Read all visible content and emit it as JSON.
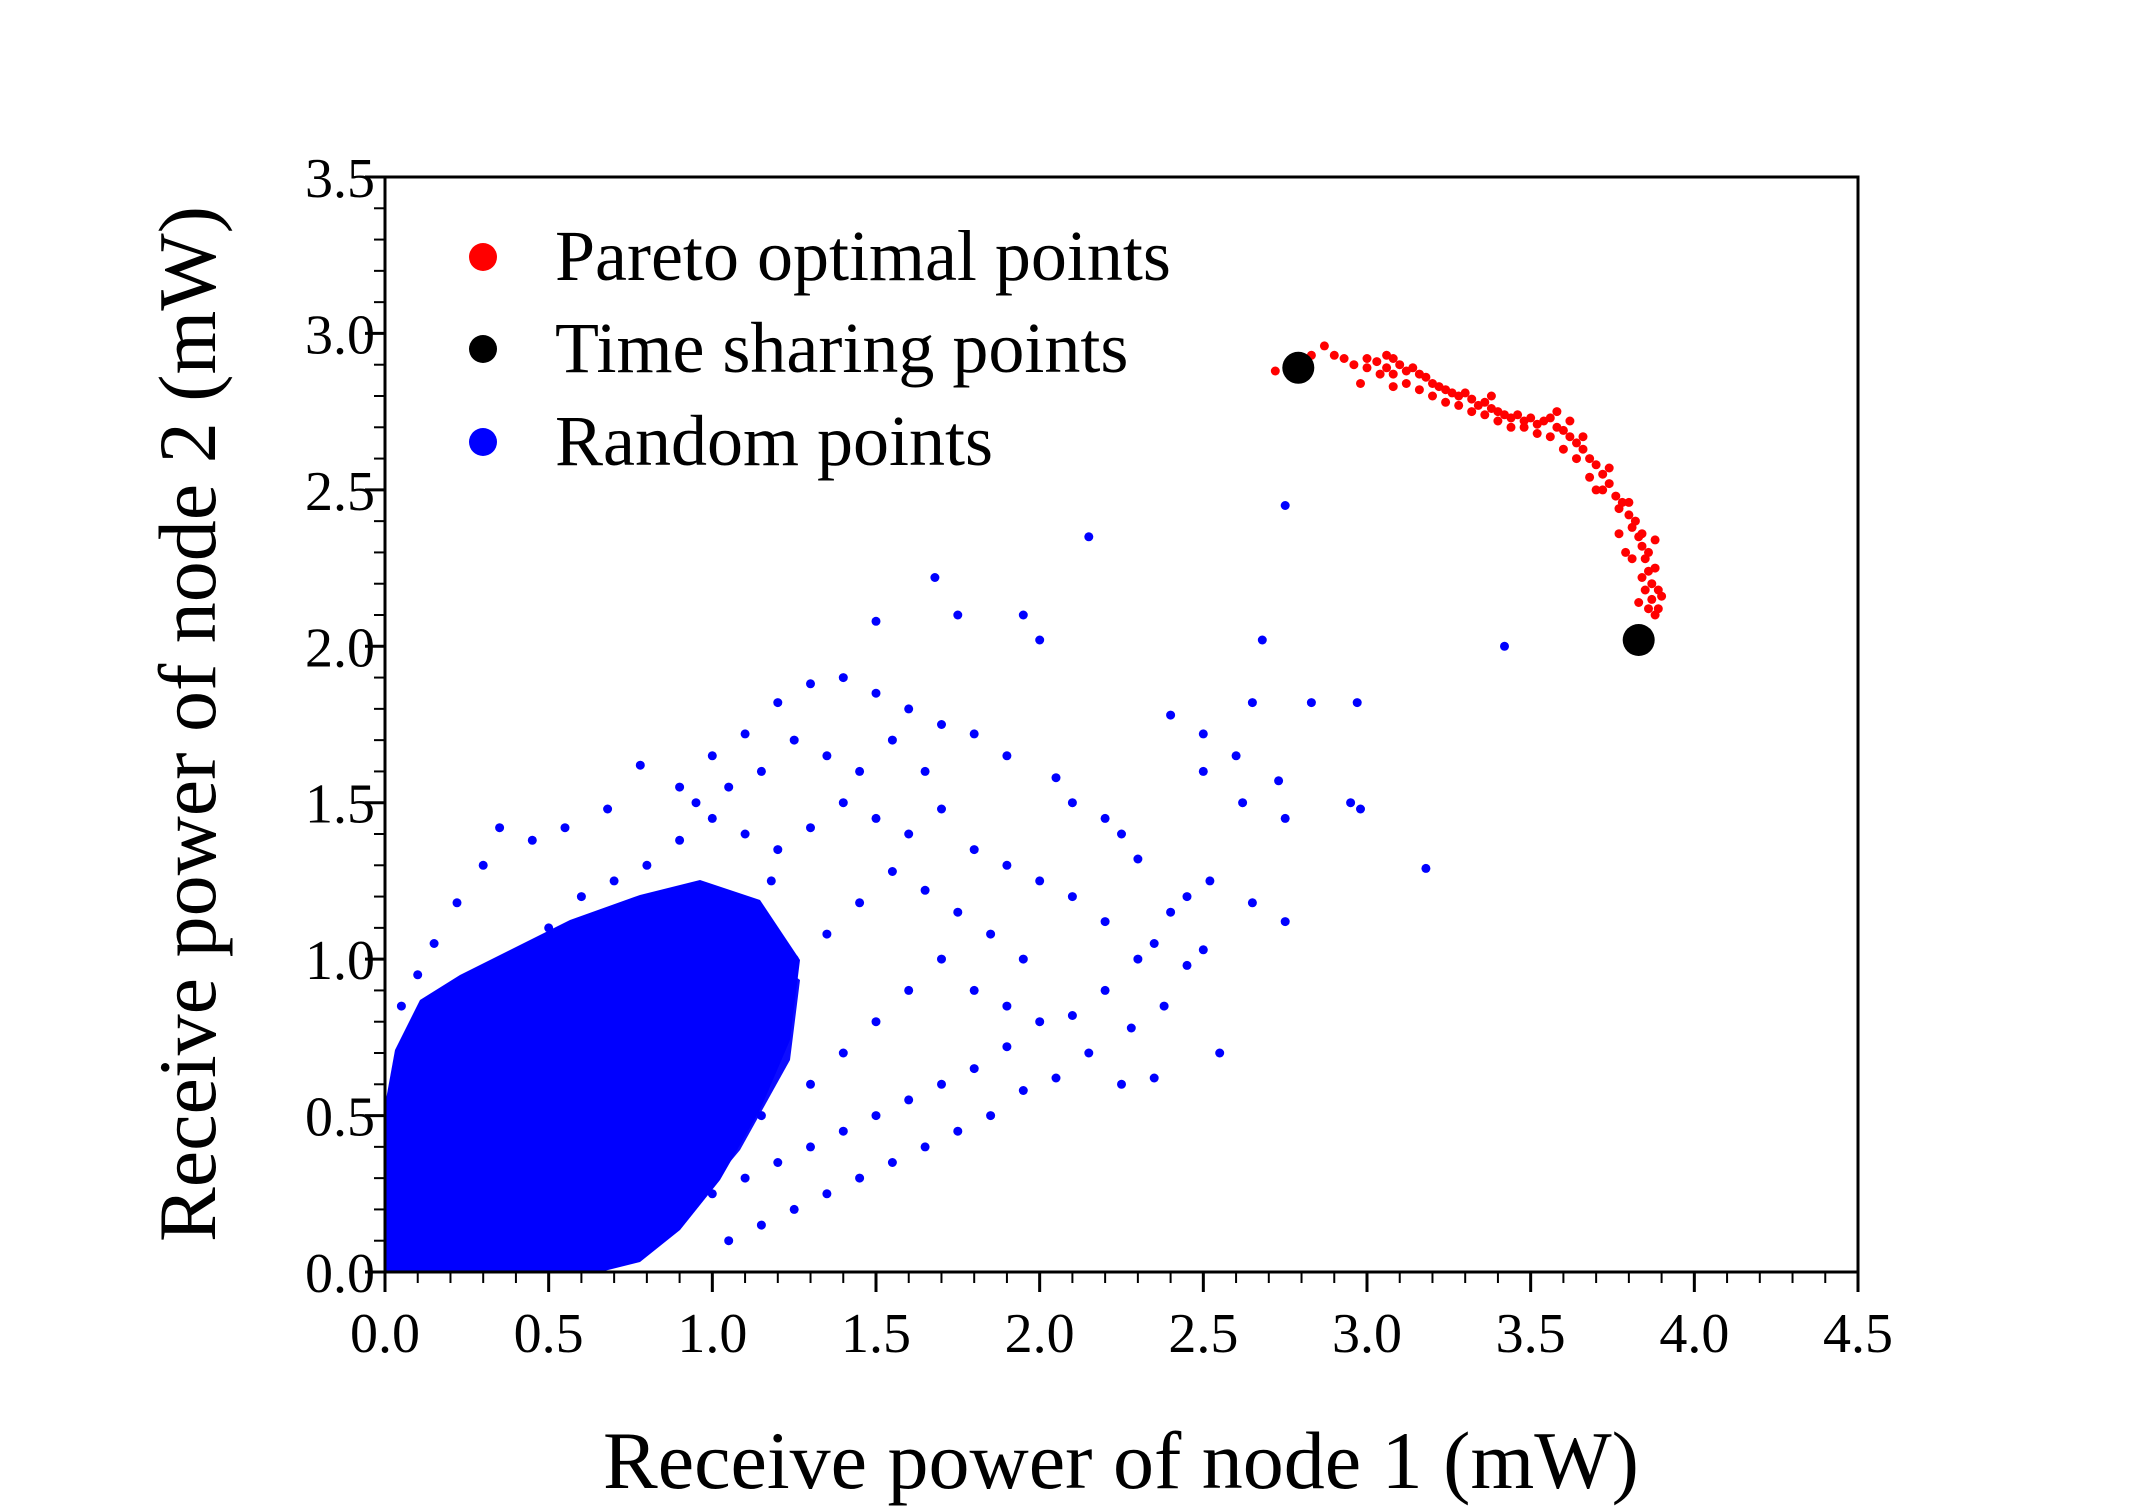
{
  "chart_data": {
    "type": "scatter",
    "title": "",
    "xlabel": "Receive power of node 1 (mW)",
    "ylabel": "Receive power of node 2 (mW)",
    "xlim": [
      0,
      4.5
    ],
    "ylim": [
      0,
      3.5
    ],
    "grid": false,
    "legend_position": "top-left",
    "x_ticks": [
      "0.0",
      "0.5",
      "1.0",
      "1.5",
      "2.0",
      "2.5",
      "3.0",
      "3.5",
      "4.0",
      "4.5"
    ],
    "y_ticks": [
      "0.0",
      "0.5",
      "1.0",
      "1.5",
      "2.0",
      "2.5",
      "3.0",
      "3.5"
    ],
    "series": [
      {
        "name": "Pareto optimal points",
        "color": "#ff0000",
        "marker": "dot",
        "points": [
          [
            2.72,
            2.88
          ],
          [
            2.76,
            2.88
          ],
          [
            2.83,
            2.93
          ],
          [
            2.87,
            2.96
          ],
          [
            2.9,
            2.93
          ],
          [
            2.93,
            2.92
          ],
          [
            2.96,
            2.9
          ],
          [
            3.0,
            2.89
          ],
          [
            3.03,
            2.91
          ],
          [
            3.06,
            2.93
          ],
          [
            3.06,
            2.89
          ],
          [
            3.08,
            2.92
          ],
          [
            3.08,
            2.87
          ],
          [
            3.1,
            2.9
          ],
          [
            3.12,
            2.88
          ],
          [
            3.14,
            2.89
          ],
          [
            3.16,
            2.87
          ],
          [
            3.18,
            2.86
          ],
          [
            3.2,
            2.84
          ],
          [
            3.22,
            2.83
          ],
          [
            3.24,
            2.82
          ],
          [
            3.26,
            2.81
          ],
          [
            3.28,
            2.8
          ],
          [
            3.3,
            2.81
          ],
          [
            3.32,
            2.79
          ],
          [
            3.34,
            2.77
          ],
          [
            3.36,
            2.78
          ],
          [
            3.38,
            2.76
          ],
          [
            3.4,
            2.75
          ],
          [
            3.42,
            2.74
          ],
          [
            3.44,
            2.73
          ],
          [
            3.46,
            2.74
          ],
          [
            3.48,
            2.72
          ],
          [
            3.5,
            2.73
          ],
          [
            3.52,
            2.71
          ],
          [
            3.54,
            2.72
          ],
          [
            3.56,
            2.73
          ],
          [
            3.58,
            2.7
          ],
          [
            3.6,
            2.69
          ],
          [
            3.62,
            2.67
          ],
          [
            3.62,
            2.72
          ],
          [
            3.64,
            2.65
          ],
          [
            3.66,
            2.63
          ],
          [
            3.68,
            2.6
          ],
          [
            3.7,
            2.58
          ],
          [
            3.72,
            2.55
          ],
          [
            3.72,
            2.5
          ],
          [
            3.74,
            2.52
          ],
          [
            3.76,
            2.48
          ],
          [
            3.77,
            2.44
          ],
          [
            3.78,
            2.46
          ],
          [
            3.8,
            2.42
          ],
          [
            3.81,
            2.38
          ],
          [
            3.82,
            2.4
          ],
          [
            3.83,
            2.35
          ],
          [
            3.84,
            2.32
          ],
          [
            3.85,
            2.28
          ],
          [
            3.86,
            2.3
          ],
          [
            3.86,
            2.24
          ],
          [
            3.87,
            2.2
          ],
          [
            3.87,
            2.15
          ],
          [
            3.88,
            2.25
          ],
          [
            3.88,
            2.1
          ],
          [
            3.89,
            2.18
          ],
          [
            3.9,
            2.16
          ],
          [
            3.84,
            2.36
          ],
          [
            3.8,
            2.46
          ],
          [
            3.74,
            2.57
          ],
          [
            3.66,
            2.67
          ],
          [
            3.58,
            2.75
          ],
          [
            2.98,
            2.84
          ],
          [
            3.38,
            2.8
          ],
          [
            3.08,
            2.83
          ],
          [
            3.88,
            2.34
          ],
          [
            3.84,
            2.22
          ],
          [
            3.83,
            2.14
          ],
          [
            3.86,
            2.12
          ],
          [
            3.89,
            2.12
          ],
          [
            3.85,
            2.18
          ],
          [
            3.81,
            2.28
          ],
          [
            3.77,
            2.36
          ],
          [
            3.79,
            2.3
          ],
          [
            3.7,
            2.5
          ],
          [
            3.68,
            2.54
          ],
          [
            3.64,
            2.6
          ],
          [
            3.6,
            2.63
          ],
          [
            3.56,
            2.67
          ],
          [
            3.52,
            2.68
          ],
          [
            3.48,
            2.7
          ],
          [
            3.44,
            2.7
          ],
          [
            3.4,
            2.72
          ],
          [
            3.36,
            2.74
          ],
          [
            3.32,
            2.75
          ],
          [
            3.28,
            2.77
          ],
          [
            3.24,
            2.78
          ],
          [
            3.2,
            2.8
          ],
          [
            3.16,
            2.82
          ],
          [
            3.12,
            2.84
          ],
          [
            3.04,
            2.87
          ],
          [
            3.0,
            2.92
          ]
        ]
      },
      {
        "name": "Time sharing points",
        "color": "#000000",
        "marker": "large-dot",
        "points": [
          [
            2.79,
            2.89
          ],
          [
            3.83,
            2.02
          ]
        ]
      },
      {
        "name": "Random points",
        "color": "#0000ff",
        "marker": "dot",
        "sample_note": "",
        "points": [
          [
            2.15,
            2.35
          ],
          [
            2.75,
            2.45
          ],
          [
            2.68,
            2.02
          ],
          [
            3.42,
            2.0
          ],
          [
            1.68,
            2.22
          ],
          [
            1.75,
            2.1
          ],
          [
            1.95,
            2.1
          ],
          [
            2.0,
            2.02
          ],
          [
            1.5,
            2.08
          ],
          [
            2.83,
            1.82
          ],
          [
            2.97,
            1.82
          ],
          [
            2.65,
            1.82
          ],
          [
            2.4,
            1.78
          ],
          [
            2.5,
            1.72
          ],
          [
            2.6,
            1.65
          ],
          [
            2.73,
            1.57
          ],
          [
            2.75,
            1.45
          ],
          [
            2.62,
            1.5
          ],
          [
            2.5,
            1.6
          ],
          [
            2.95,
            1.5
          ],
          [
            2.98,
            1.48
          ],
          [
            3.18,
            1.29
          ],
          [
            2.75,
            1.12
          ],
          [
            2.65,
            1.18
          ],
          [
            2.52,
            1.25
          ],
          [
            2.5,
            1.03
          ],
          [
            2.55,
            0.7
          ],
          [
            2.45,
            0.98
          ],
          [
            2.35,
            1.05
          ],
          [
            2.3,
            1.32
          ],
          [
            2.25,
            1.4
          ],
          [
            2.2,
            1.45
          ],
          [
            2.1,
            1.5
          ],
          [
            2.05,
            1.58
          ],
          [
            1.9,
            1.65
          ],
          [
            1.8,
            1.72
          ],
          [
            1.7,
            1.75
          ],
          [
            1.6,
            1.8
          ],
          [
            1.5,
            1.85
          ],
          [
            1.4,
            1.9
          ],
          [
            1.3,
            1.88
          ],
          [
            1.2,
            1.82
          ],
          [
            1.1,
            1.72
          ],
          [
            1.0,
            1.65
          ],
          [
            0.9,
            1.55
          ],
          [
            0.78,
            1.62
          ],
          [
            0.68,
            1.48
          ],
          [
            0.55,
            1.42
          ],
          [
            0.45,
            1.38
          ],
          [
            0.35,
            1.42
          ],
          [
            0.3,
            1.3
          ],
          [
            0.22,
            1.18
          ],
          [
            0.15,
            1.05
          ],
          [
            0.1,
            0.95
          ],
          [
            0.05,
            0.85
          ],
          [
            0.1,
            0.72
          ],
          [
            0.2,
            0.78
          ],
          [
            0.3,
            0.9
          ],
          [
            0.4,
            1.0
          ],
          [
            0.5,
            1.1
          ],
          [
            0.6,
            1.2
          ],
          [
            0.7,
            1.25
          ],
          [
            0.8,
            1.3
          ],
          [
            0.9,
            1.38
          ],
          [
            1.0,
            1.45
          ],
          [
            1.1,
            1.4
          ],
          [
            1.2,
            1.35
          ],
          [
            1.3,
            1.42
          ],
          [
            1.4,
            1.5
          ],
          [
            1.5,
            1.45
          ],
          [
            1.6,
            1.4
          ],
          [
            1.7,
            1.48
          ],
          [
            1.8,
            1.35
          ],
          [
            1.9,
            1.3
          ],
          [
            2.0,
            1.25
          ],
          [
            2.1,
            1.2
          ],
          [
            2.2,
            1.12
          ],
          [
            2.3,
            1.0
          ],
          [
            2.2,
            0.9
          ],
          [
            2.1,
            0.82
          ],
          [
            2.0,
            0.8
          ],
          [
            1.9,
            0.72
          ],
          [
            1.8,
            0.65
          ],
          [
            1.7,
            0.6
          ],
          [
            1.6,
            0.55
          ],
          [
            1.5,
            0.5
          ],
          [
            1.4,
            0.45
          ],
          [
            1.3,
            0.4
          ],
          [
            1.2,
            0.35
          ],
          [
            1.1,
            0.3
          ],
          [
            1.0,
            0.25
          ],
          [
            0.9,
            0.2
          ],
          [
            0.8,
            0.12
          ],
          [
            0.7,
            0.08
          ],
          [
            0.6,
            0.04
          ],
          [
            0.5,
            0.02
          ],
          [
            2.35,
            0.62
          ],
          [
            2.25,
            0.6
          ],
          [
            2.15,
            0.7
          ],
          [
            2.05,
            0.62
          ],
          [
            1.95,
            0.58
          ],
          [
            1.85,
            0.5
          ],
          [
            1.75,
            0.45
          ],
          [
            1.65,
            0.4
          ],
          [
            1.55,
            0.35
          ],
          [
            1.45,
            0.3
          ],
          [
            1.35,
            0.25
          ],
          [
            1.25,
            0.2
          ],
          [
            1.15,
            0.15
          ],
          [
            1.05,
            0.1
          ],
          [
            2.4,
            1.15
          ],
          [
            2.45,
            1.2
          ],
          [
            2.38,
            0.85
          ],
          [
            2.28,
            0.78
          ],
          [
            1.95,
            1.0
          ],
          [
            1.85,
            1.08
          ],
          [
            1.75,
            1.15
          ],
          [
            1.65,
            1.22
          ],
          [
            1.55,
            1.28
          ],
          [
            1.45,
            1.18
          ],
          [
            1.35,
            1.08
          ],
          [
            1.25,
            1.0
          ],
          [
            1.15,
            0.95
          ],
          [
            1.05,
            1.05
          ],
          [
            0.95,
            1.12
          ],
          [
            0.85,
            1.18
          ],
          [
            0.75,
            1.08
          ],
          [
            0.65,
            1.0
          ],
          [
            0.55,
            0.92
          ],
          [
            0.45,
            0.85
          ],
          [
            0.35,
            0.78
          ],
          [
            0.25,
            0.7
          ],
          [
            0.15,
            0.6
          ],
          [
            0.05,
            0.5
          ],
          [
            0.02,
            0.3
          ],
          [
            0.05,
            0.15
          ],
          [
            0.1,
            0.05
          ],
          [
            0.2,
            0.1
          ],
          [
            0.3,
            0.2
          ],
          [
            0.4,
            0.3
          ],
          [
            0.5,
            0.4
          ],
          [
            0.6,
            0.5
          ],
          [
            0.7,
            0.6
          ],
          [
            0.8,
            0.7
          ],
          [
            0.9,
            0.8
          ],
          [
            1.0,
            0.9
          ],
          [
            1.1,
            0.8
          ],
          [
            1.2,
            0.7
          ],
          [
            1.3,
            0.6
          ],
          [
            1.4,
            0.7
          ],
          [
            1.5,
            0.8
          ],
          [
            1.6,
            0.9
          ],
          [
            1.7,
            1.0
          ],
          [
            1.8,
            0.9
          ],
          [
            1.9,
            0.85
          ],
          [
            0.25,
            0.45
          ],
          [
            0.35,
            0.55
          ],
          [
            0.45,
            0.6
          ],
          [
            0.55,
            0.65
          ],
          [
            0.65,
            0.72
          ],
          [
            0.75,
            0.78
          ],
          [
            0.85,
            0.85
          ],
          [
            0.95,
            0.6
          ],
          [
            1.05,
            0.55
          ],
          [
            1.15,
            0.5
          ],
          [
            0.12,
            0.35
          ],
          [
            0.22,
            0.25
          ],
          [
            0.32,
            0.15
          ],
          [
            0.42,
            0.05
          ],
          [
            0.18,
            0.5
          ],
          [
            1.25,
            1.7
          ],
          [
            1.35,
            1.65
          ],
          [
            1.45,
            1.6
          ],
          [
            1.55,
            1.7
          ],
          [
            1.65,
            1.6
          ],
          [
            1.15,
            1.6
          ],
          [
            1.05,
            1.55
          ],
          [
            0.95,
            1.5
          ],
          [
            1.18,
            1.25
          ],
          [
            0.72,
            0.92
          ]
        ]
      }
    ]
  }
}
